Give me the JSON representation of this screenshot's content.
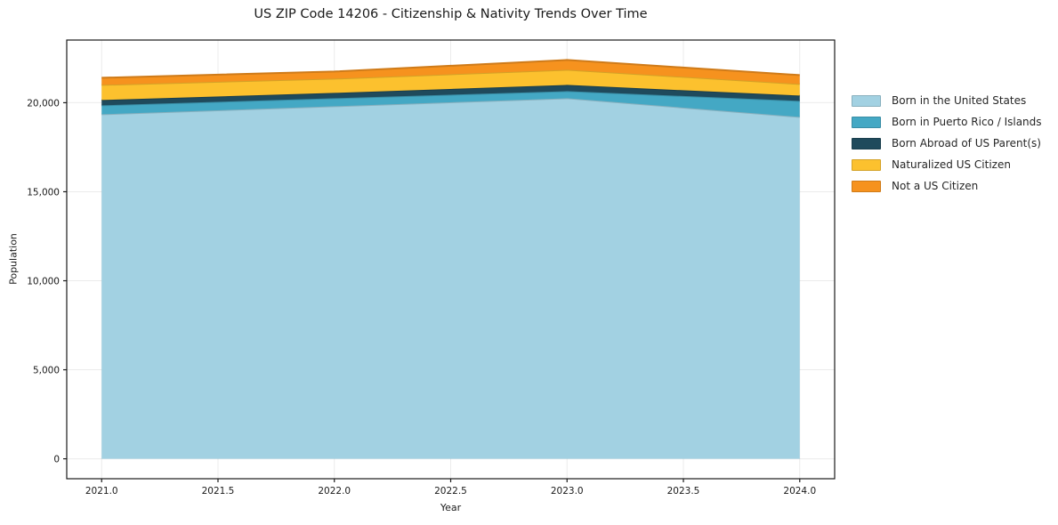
{
  "chart_data": {
    "type": "area",
    "stacked": true,
    "title": "US ZIP Code 14206 - Citizenship & Nativity Trends Over Time",
    "xlabel": "Year",
    "ylabel": "Population",
    "x": [
      2021,
      2022,
      2023,
      2024
    ],
    "series": [
      {
        "name": "Born in the United States",
        "color": "#A2D1E2",
        "values": [
          19350,
          19800,
          20250,
          19200
        ]
      },
      {
        "name": "Born in Puerto Rico / Islands",
        "color": "#44A8C4",
        "values": [
          500,
          450,
          400,
          900
        ]
      },
      {
        "name": "Born Abroad of US Parent(s)",
        "color": "#1F4A5C",
        "values": [
          300,
          300,
          350,
          300
        ]
      },
      {
        "name": "Naturalized US Citizen",
        "color": "#FCC12E",
        "values": [
          850,
          800,
          850,
          650
        ]
      },
      {
        "name": "Not a US Citizen",
        "color": "#F6921E",
        "values": [
          400,
          400,
          550,
          500
        ]
      }
    ],
    "stack_totals": [
      21400,
      21750,
      22400,
      21550
    ],
    "xlim": [
      2020.85,
      2024.15
    ],
    "ylim": [
      -1120,
      23520
    ],
    "xticks": {
      "values": [
        2021,
        2021.5,
        2022,
        2022.5,
        2023,
        2023.5,
        2024
      ],
      "labels": [
        "2021.0",
        "2021.5",
        "2022.0",
        "2022.5",
        "2023.0",
        "2023.5",
        "2024.0"
      ]
    },
    "yticks": {
      "values": [
        0,
        5000,
        10000,
        15000,
        20000
      ],
      "labels": [
        "0",
        "5,000",
        "10,000",
        "15,000",
        "20,000"
      ]
    },
    "grid": true,
    "grid_color": "rgba(0,0,0,0.08)",
    "legend_position": "right-outside"
  }
}
